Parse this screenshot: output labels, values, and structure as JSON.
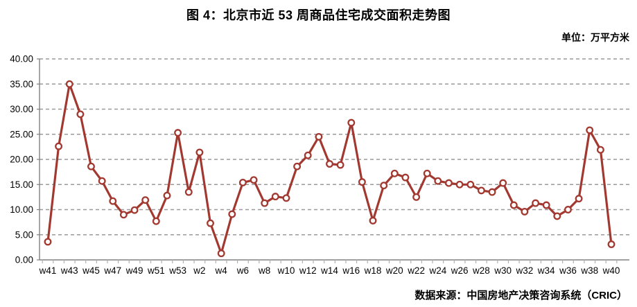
{
  "header": {
    "title": "图 4：北京市近 53 周商品住宅成交面积走势图",
    "unit": "单位：万平方米"
  },
  "footer": {
    "source": "数据来源：中国房地产决策咨询系统（CRIC）"
  },
  "chart_data": {
    "type": "line",
    "title": "图 4：北京市近 53 周商品住宅成交面积走势图",
    "ylabel": "万平方米",
    "categories": [
      "w41",
      "w42",
      "w43",
      "w44",
      "w45",
      "w46",
      "w47",
      "w48",
      "w49",
      "w50",
      "w51",
      "w52",
      "w53",
      "w1",
      "w2",
      "w3",
      "w4",
      "w5",
      "w6",
      "w7",
      "w8",
      "w9",
      "w10",
      "w11",
      "w12",
      "w13",
      "w14",
      "w15",
      "w16",
      "w17",
      "w18",
      "w19",
      "w20",
      "w21",
      "w22",
      "w23",
      "w24",
      "w25",
      "w26",
      "w27",
      "w28",
      "w29",
      "w30",
      "w31",
      "w32",
      "w33",
      "w34",
      "w35",
      "w36",
      "w37",
      "w38",
      "w39",
      "w40"
    ],
    "values": [
      3.6,
      22.6,
      35.0,
      29.0,
      18.6,
      15.7,
      11.7,
      9.0,
      9.9,
      11.9,
      7.7,
      12.8,
      25.3,
      13.5,
      21.4,
      7.3,
      1.3,
      9.1,
      15.4,
      15.9,
      11.3,
      12.6,
      12.3,
      18.6,
      20.8,
      24.5,
      19.1,
      18.9,
      27.3,
      15.5,
      7.8,
      14.8,
      17.2,
      16.4,
      12.5,
      17.2,
      15.7,
      15.3,
      15.0,
      15.0,
      13.8,
      13.5,
      15.3,
      10.9,
      9.6,
      11.3,
      10.9,
      8.7,
      10.0,
      12.2,
      25.8,
      21.9,
      3.1
    ],
    "x_tick_labels": [
      "w41",
      "w43",
      "w45",
      "w47",
      "w49",
      "w51",
      "w53",
      "w2",
      "w4",
      "w6",
      "w8",
      "w10",
      "w12",
      "w14",
      "w16",
      "w18",
      "w20",
      "w22",
      "w24",
      "w26",
      "w28",
      "w30",
      "w32",
      "w34",
      "w36",
      "w38",
      "w40"
    ],
    "ylim": [
      0,
      40
    ],
    "y_tick_step": 5,
    "y_tick_decimals": 2,
    "grid": "horizontal-dashed",
    "legend": "none",
    "line_color": "#A23931",
    "marker": "open-circle",
    "marker_fill": "#FFFFFF",
    "grid_color": "#999999",
    "axis_color": "#808080"
  }
}
